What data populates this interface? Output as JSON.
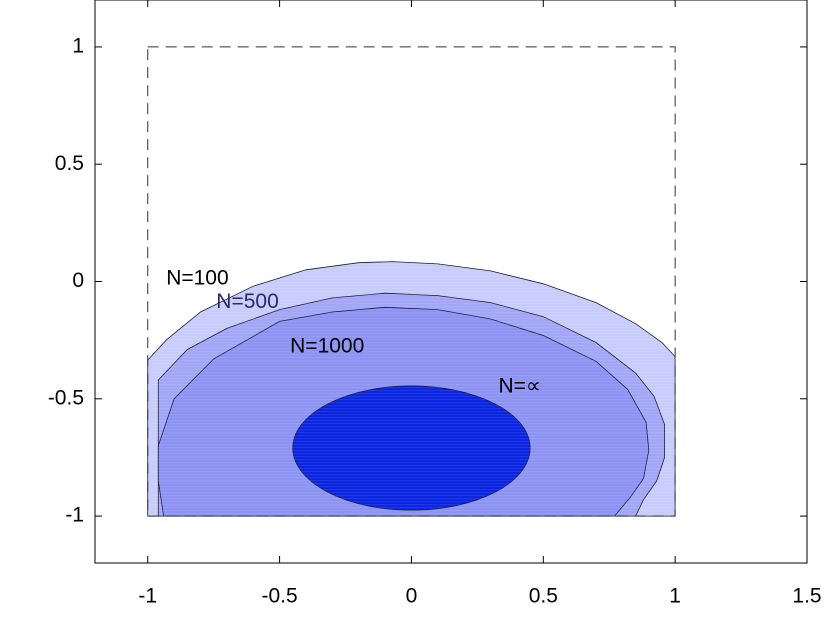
{
  "chart_data": {
    "type": "area",
    "title": "",
    "xlabel": "",
    "ylabel": "",
    "xlim": [
      -1.2,
      1.5
    ],
    "ylim": [
      -1.2,
      1.2
    ],
    "xticks": [
      {
        "value": -1,
        "label": "-1"
      },
      {
        "value": -0.5,
        "label": "-0.5"
      },
      {
        "value": 0,
        "label": "0"
      },
      {
        "value": 0.5,
        "label": "0.5"
      },
      {
        "value": 1,
        "label": "1"
      },
      {
        "value": 1.5,
        "label": "1.5"
      }
    ],
    "yticks": [
      {
        "value": 1,
        "label": "1"
      },
      {
        "value": 0.5,
        "label": "0.5"
      },
      {
        "value": 0,
        "label": "0"
      },
      {
        "value": -0.5,
        "label": "-0.5"
      },
      {
        "value": -1,
        "label": "-1"
      }
    ],
    "grid": false,
    "box": {
      "x": [
        -1,
        1
      ],
      "y": [
        -1,
        1
      ],
      "style": "dashed"
    },
    "regions": [
      {
        "name": "N=100",
        "label": "N=100",
        "color": "#c8ccfb",
        "points": [
          [
            -1,
            -1
          ],
          [
            -1,
            -0.335
          ],
          [
            -0.93,
            -0.25
          ],
          [
            -0.8,
            -0.13
          ],
          [
            -0.6,
            -0.02
          ],
          [
            -0.4,
            0.05
          ],
          [
            -0.2,
            0.08
          ],
          [
            -0.07,
            0.085
          ],
          [
            0.1,
            0.075
          ],
          [
            0.3,
            0.045
          ],
          [
            0.5,
            -0.01
          ],
          [
            0.7,
            -0.09
          ],
          [
            0.85,
            -0.18
          ],
          [
            0.95,
            -0.26
          ],
          [
            1,
            -0.32
          ],
          [
            1,
            -1
          ]
        ]
      },
      {
        "name": "N=500",
        "label": "N=500",
        "color": "#a3a6f6",
        "points": [
          [
            -0.96,
            -1
          ],
          [
            -0.96,
            -0.42
          ],
          [
            -0.85,
            -0.29
          ],
          [
            -0.7,
            -0.2
          ],
          [
            -0.5,
            -0.12
          ],
          [
            -0.3,
            -0.07
          ],
          [
            -0.1,
            -0.05
          ],
          [
            0.1,
            -0.06
          ],
          [
            0.3,
            -0.09
          ],
          [
            0.5,
            -0.15
          ],
          [
            0.7,
            -0.26
          ],
          [
            0.85,
            -0.39
          ],
          [
            0.92,
            -0.49
          ],
          [
            0.96,
            -0.61
          ],
          [
            0.96,
            -0.75
          ],
          [
            0.93,
            -0.85
          ],
          [
            0.88,
            -0.93
          ],
          [
            0.85,
            -1
          ]
        ]
      },
      {
        "name": "N=1000",
        "label": "N=1000",
        "color": "#8c93f3",
        "points": [
          [
            -0.94,
            -1
          ],
          [
            -0.96,
            -0.85
          ],
          [
            -0.96,
            -0.7
          ],
          [
            -0.9,
            -0.5
          ],
          [
            -0.75,
            -0.33
          ],
          [
            -0.5,
            -0.17
          ],
          [
            -0.3,
            -0.13
          ],
          [
            -0.1,
            -0.11
          ],
          [
            0.1,
            -0.12
          ],
          [
            0.3,
            -0.16
          ],
          [
            0.5,
            -0.23
          ],
          [
            0.7,
            -0.34
          ],
          [
            0.82,
            -0.46
          ],
          [
            0.89,
            -0.6
          ],
          [
            0.9,
            -0.72
          ],
          [
            0.88,
            -0.84
          ],
          [
            0.83,
            -0.92
          ],
          [
            0.77,
            -1
          ]
        ]
      },
      {
        "name": "N=∝",
        "label": "N=∝",
        "type": "ellipse",
        "color": "#0a25e2",
        "center": [
          0.0,
          -0.71
        ],
        "radii": [
          0.45,
          0.265
        ]
      }
    ],
    "annotations": [
      {
        "text": "N=100",
        "x": -0.93,
        "y": 0.01,
        "color": "#000000"
      },
      {
        "text": "N=500",
        "x": -0.74,
        "y": -0.09,
        "color": "#2a2a6a"
      },
      {
        "text": "N=1000",
        "x": -0.46,
        "y": -0.28,
        "color": "#000000"
      },
      {
        "text": "N=∝",
        "x": 0.33,
        "y": -0.45,
        "color": "#000000"
      }
    ]
  }
}
